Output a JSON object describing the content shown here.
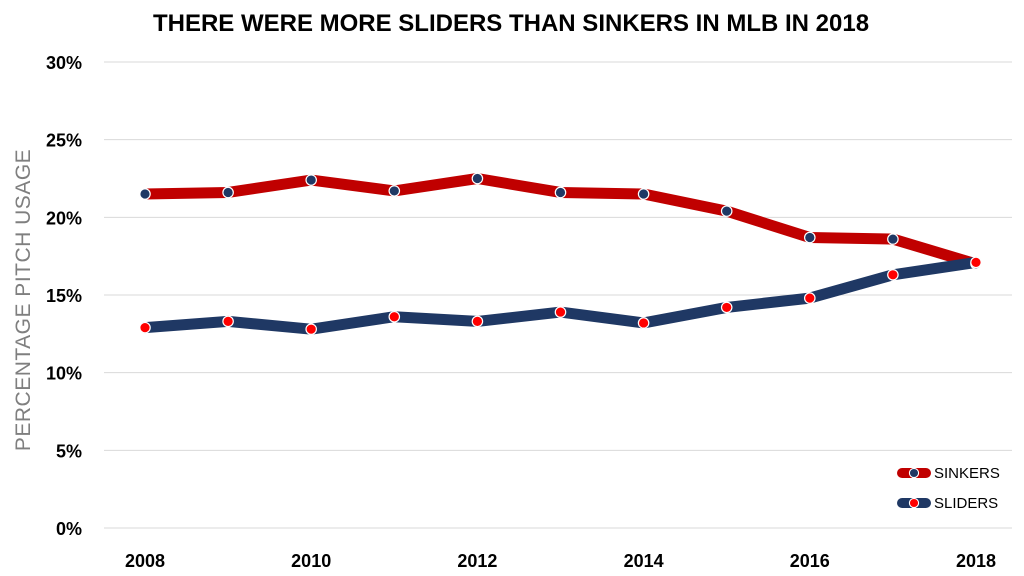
{
  "chart_data": {
    "type": "line",
    "title": "THERE WERE MORE SLIDERS THAN SINKERS IN MLB IN 2018",
    "xlabel": "",
    "ylabel": "PERCENTAGE PITCH USAGE",
    "x": [
      2008,
      2009,
      2010,
      2011,
      2012,
      2013,
      2014,
      2015,
      2016,
      2017,
      2018
    ],
    "x_tick_labels": [
      "2008",
      "2010",
      "2012",
      "2014",
      "2016",
      "2018"
    ],
    "x_tick_values": [
      2008,
      2010,
      2012,
      2014,
      2016,
      2018
    ],
    "ylim": [
      0,
      30
    ],
    "y_ticks": [
      0,
      5,
      10,
      15,
      20,
      25,
      30
    ],
    "y_tick_labels": [
      "0%",
      "5%",
      "10%",
      "15%",
      "20%",
      "25%",
      "30%"
    ],
    "grid": true,
    "legend_position": "bottom-right",
    "series": [
      {
        "name": "SINKERS",
        "values": [
          21.5,
          21.6,
          22.4,
          21.7,
          22.5,
          21.6,
          21.5,
          20.4,
          18.7,
          18.6,
          17.0
        ],
        "line_color": "#c00000",
        "marker_fill": "#1f3864",
        "marker_edge": "#ffffff"
      },
      {
        "name": "SLIDERS",
        "values": [
          12.9,
          13.3,
          12.8,
          13.6,
          13.3,
          13.9,
          13.2,
          14.2,
          14.8,
          16.3,
          17.1
        ],
        "line_color": "#1f3864",
        "marker_fill": "#ff0000",
        "marker_edge": "#ffffff"
      }
    ]
  }
}
